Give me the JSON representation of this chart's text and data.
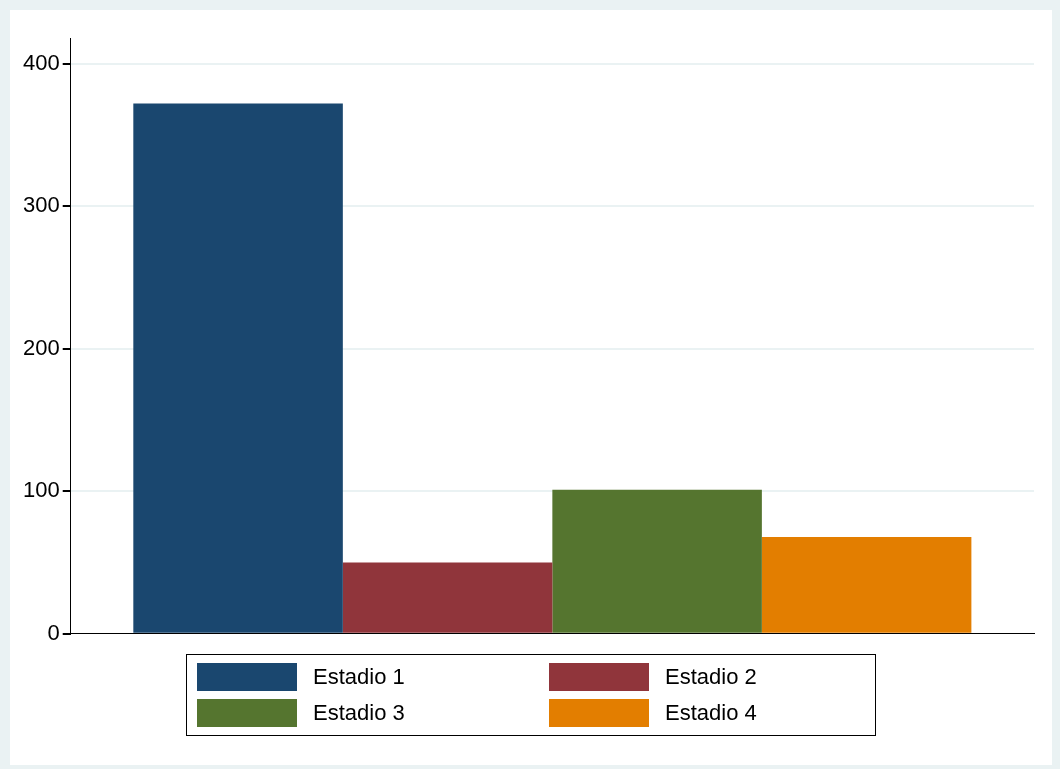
{
  "chart_data": {
    "type": "bar",
    "categories": [
      null
    ],
    "series": [
      {
        "name": "Estadio 1",
        "color": "#1a476f",
        "values": [
          372
        ]
      },
      {
        "name": "Estadio 2",
        "color": "#90353b",
        "values": [
          50
        ]
      },
      {
        "name": "Estadio 3",
        "color": "#55752f",
        "values": [
          101
        ]
      },
      {
        "name": "Estadio 4",
        "color": "#e37e00",
        "values": [
          68
        ]
      }
    ],
    "ylim": [
      0,
      418
    ],
    "yticks": [
      0,
      100,
      200,
      300,
      400
    ],
    "grid": "y",
    "legend": "bottom"
  }
}
